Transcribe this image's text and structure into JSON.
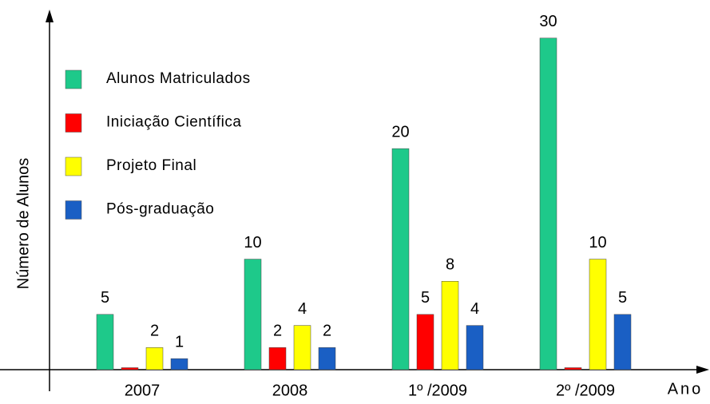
{
  "chart_data": {
    "type": "bar",
    "categories": [
      "2007",
      "2008",
      "1º /2009",
      "2º /2009"
    ],
    "series": [
      {
        "name": "Alunos Matriculados",
        "color": "#1ec98a",
        "values": [
          5,
          10,
          20,
          30
        ]
      },
      {
        "name": "Iniciação Científica",
        "color": "#ff0000",
        "values": [
          0,
          2,
          5,
          0
        ]
      },
      {
        "name": "Projeto Final",
        "color": "#ffff00",
        "values": [
          2,
          4,
          8,
          10
        ]
      },
      {
        "name": "Pós-graduação",
        "color": "#1a5fc4",
        "values": [
          1,
          2,
          4,
          5
        ]
      }
    ],
    "ylabel": "Número de Alunos",
    "xlabel": "Ano",
    "ylim": [
      0,
      32
    ]
  }
}
